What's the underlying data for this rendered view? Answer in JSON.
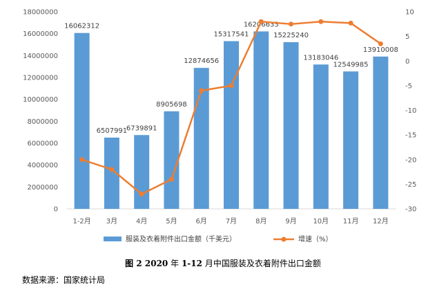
{
  "chart_data": {
    "type": "bar+line",
    "categories": [
      "1-2月",
      "3月",
      "4月",
      "5月",
      "6月",
      "7月",
      "8月",
      "9月",
      "10月",
      "11月",
      "12月"
    ],
    "series": [
      {
        "name": "服装及衣着附件出口金额（千美元）",
        "type": "bar",
        "axis": "left",
        "color": "#5B9BD5",
        "values": [
          16062312,
          6507991,
          6739891,
          8905698,
          12874656,
          15317541,
          16206633,
          15225240,
          13183046,
          12549985,
          13910008
        ]
      },
      {
        "name": "增速（%）",
        "type": "line",
        "axis": "right",
        "color": "#ED7D31",
        "values": [
          -20.0,
          -22.0,
          -27.0,
          -24.0,
          -6.0,
          -5.0,
          8.0,
          7.5,
          8.0,
          7.7,
          3.5
        ]
      }
    ],
    "y_left": {
      "min": 0,
      "max": 18000000,
      "step": 2000000
    },
    "y_right": {
      "min": -30,
      "max": 10,
      "step": 5
    },
    "legend_position": "bottom",
    "grid": false
  },
  "caption": {
    "figure_no": "图 2 2020",
    "year_suffix": "年",
    "range": "1-12",
    "title_rest": "月中国服装及衣着附件出口金额"
  },
  "source": "数据来源：国家统计局"
}
